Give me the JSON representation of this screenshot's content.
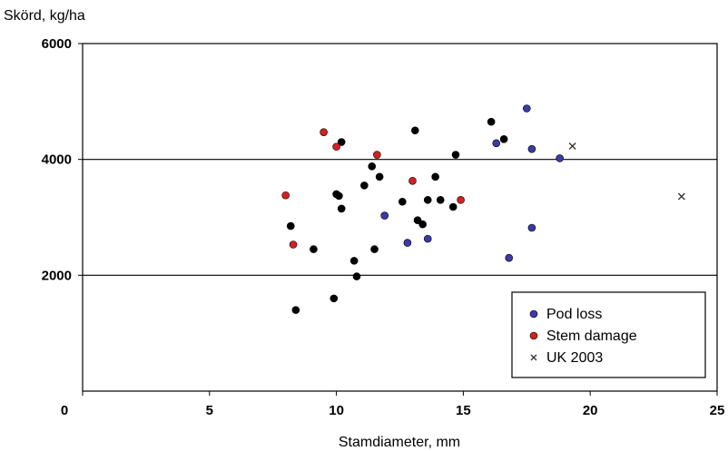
{
  "chart_data": {
    "type": "scatter",
    "ylabel": "Skörd, kg/ha",
    "xlabel": "Stamdiameter, mm",
    "xlim": [
      0,
      25
    ],
    "ylim": [
      0,
      6000
    ],
    "x_ticks": [
      0,
      5,
      10,
      15,
      20,
      25
    ],
    "x_tick_labels": [
      "0",
      "5",
      "10",
      "15",
      "20",
      "25"
    ],
    "y_ticks": [
      2000,
      4000,
      6000
    ],
    "y_tick_labels": [
      "2000",
      "4000",
      "6000"
    ],
    "horizontal_gridlines": [
      2000,
      4000
    ],
    "legend_position": "bottom-right",
    "series": [
      {
        "name": "",
        "marker": "dot",
        "color": "#000000",
        "points": [
          [
            8.4,
            1400
          ],
          [
            8.2,
            2850
          ],
          [
            9.1,
            2450
          ],
          [
            9.9,
            1600
          ],
          [
            10.0,
            3400
          ],
          [
            10.1,
            3370
          ],
          [
            10.2,
            3150
          ],
          [
            10.2,
            4300
          ],
          [
            10.7,
            2250
          ],
          [
            10.8,
            1980
          ],
          [
            11.1,
            3550
          ],
          [
            11.4,
            3880
          ],
          [
            11.5,
            2450
          ],
          [
            11.7,
            3700
          ],
          [
            12.6,
            3270
          ],
          [
            13.1,
            4500
          ],
          [
            13.2,
            2950
          ],
          [
            13.4,
            2880
          ],
          [
            13.6,
            3300
          ],
          [
            13.9,
            3700
          ],
          [
            14.1,
            3300
          ],
          [
            14.6,
            3180
          ],
          [
            14.7,
            4080
          ],
          [
            16.1,
            4650
          ],
          [
            16.6,
            4350
          ]
        ]
      },
      {
        "name": "Pod loss",
        "marker": "dot",
        "color": "#3a3aa8",
        "points": [
          [
            11.9,
            3030
          ],
          [
            12.8,
            2560
          ],
          [
            13.6,
            2630
          ],
          [
            16.3,
            4280
          ],
          [
            16.8,
            2300
          ],
          [
            17.5,
            4880
          ],
          [
            17.7,
            4180
          ],
          [
            17.7,
            2820
          ],
          [
            18.8,
            4020
          ]
        ]
      },
      {
        "name": "Stem damage",
        "marker": "dot",
        "color": "#d42020",
        "points": [
          [
            8.0,
            3380
          ],
          [
            8.3,
            2530
          ],
          [
            9.5,
            4470
          ],
          [
            10.0,
            4220
          ],
          [
            11.6,
            4080
          ],
          [
            13.0,
            3630
          ],
          [
            14.9,
            3300
          ]
        ]
      },
      {
        "name": "UK 2003",
        "marker": "x",
        "color": "#333333",
        "points": [
          [
            19.3,
            4230
          ],
          [
            23.6,
            3360
          ]
        ]
      }
    ]
  }
}
